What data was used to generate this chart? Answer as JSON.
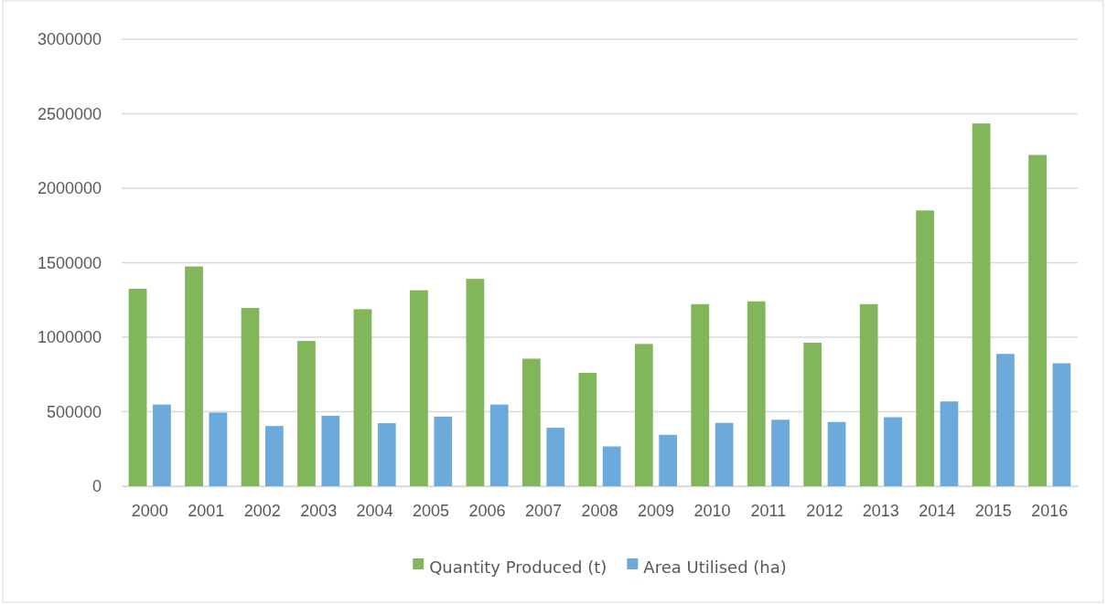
{
  "chart_data": {
    "type": "bar",
    "categories": [
      "2000",
      "2001",
      "2002",
      "2003",
      "2004",
      "2005",
      "2006",
      "2007",
      "2008",
      "2009",
      "2010",
      "2011",
      "2012",
      "2013",
      "2014",
      "2015",
      "2016"
    ],
    "series": [
      {
        "name": "Quantity Produced (t)",
        "color": "#82b65a",
        "values": [
          1325000,
          1475000,
          1196000,
          975000,
          1188000,
          1315000,
          1392000,
          856000,
          761000,
          955000,
          1222000,
          1241000,
          963000,
          1222000,
          1851000,
          2435000,
          2224000
        ]
      },
      {
        "name": "Area Utilised (ha)",
        "color": "#6caadb",
        "values": [
          548000,
          494000,
          404000,
          473000,
          423000,
          467000,
          548000,
          392000,
          267000,
          345000,
          425000,
          446000,
          431000,
          463000,
          569000,
          888000,
          825000
        ]
      }
    ],
    "ylim": [
      0,
      3000000
    ],
    "yticks": [
      0,
      500000,
      1000000,
      1500000,
      2000000,
      2500000,
      3000000
    ],
    "grid": "y",
    "legend": "bottom"
  }
}
